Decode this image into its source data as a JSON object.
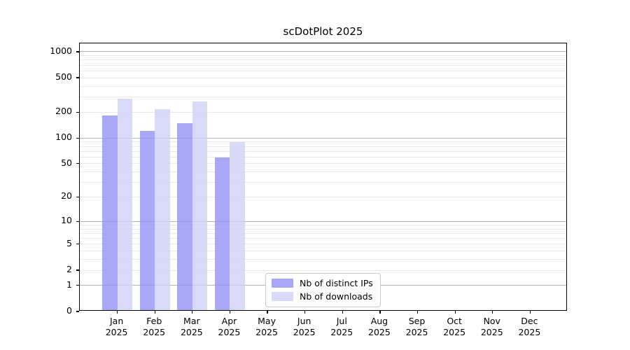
{
  "figure": {
    "background": "#ffffff"
  },
  "chart_data": {
    "type": "bar",
    "title": "scDotPlot 2025",
    "categories": [
      "Jan 2025",
      "Feb 2025",
      "Mar 2025",
      "Apr 2025",
      "May 2025",
      "Jun 2025",
      "Jul 2025",
      "Aug 2025",
      "Sep 2025",
      "Oct 2025",
      "Nov 2025",
      "Dec 2025"
    ],
    "series": [
      {
        "name": "Nb of distinct IPs",
        "bar_color": "rgba(146,146,244,0.8)",
        "legend_color": "#a8a8f6",
        "values": [
          176,
          116,
          144,
          57,
          0,
          0,
          0,
          0,
          0,
          0,
          0,
          0
        ]
      },
      {
        "name": "Nb of downloads",
        "bar_color": "rgba(207,207,246,0.8)",
        "legend_color": "#d9d9f8",
        "values": [
          278,
          209,
          256,
          86,
          0,
          0,
          0,
          0,
          0,
          0,
          0,
          0
        ]
      }
    ],
    "yscale": "log1p",
    "ylim": [
      0,
      1250
    ],
    "yticks": [
      1000,
      500,
      200,
      100,
      50,
      20,
      10,
      5,
      2,
      1,
      0
    ],
    "xlabel": "",
    "ylabel": "",
    "grid": {
      "on": true,
      "major_values": [
        1,
        10,
        100,
        1000
      ],
      "minor_values": [
        2,
        3,
        4,
        5,
        6,
        7,
        8,
        9,
        20,
        30,
        40,
        50,
        60,
        70,
        80,
        90,
        200,
        300,
        400,
        500,
        600,
        700,
        800,
        900
      ],
      "major_color": "#b3b3b3",
      "minor_color": "#e8e8e8"
    },
    "legend": {
      "position": "lower center inside"
    },
    "axis_color": "#000000",
    "text_color": "#000000"
  }
}
